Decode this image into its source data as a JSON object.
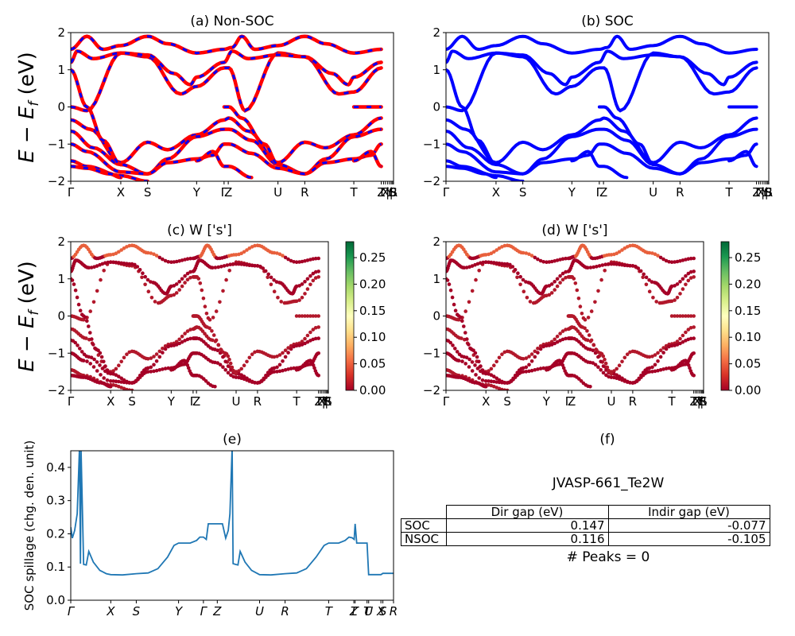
{
  "figure": {
    "ylabel_band": "E − E_f (eV)",
    "panels": {
      "a": {
        "title": "(a) Non-SOC"
      },
      "b": {
        "title": "(b) SOC"
      },
      "c": {
        "title": "(c)  W ['s']"
      },
      "d": {
        "title": "(d) W ['s']"
      },
      "e": {
        "title": "(e)"
      },
      "f": {
        "title": "(f)"
      }
    }
  },
  "chart_data": [
    {
      "id": "a",
      "type": "line",
      "title": "(a) Non-SOC",
      "ylabel": "E − E_f (eV)",
      "ylim": [
        -2,
        2
      ],
      "yticks": [
        "2",
        "1",
        "0",
        "−1",
        "−2"
      ],
      "ytick_values": [
        2,
        1,
        0,
        -1,
        -2
      ],
      "xtick_labels": [
        "Γ",
        "X",
        "S",
        "Y",
        "Γ",
        "Z",
        "U",
        "R",
        "T",
        "Z",
        "Γ",
        "X",
        "|",
        "Y",
        "|",
        "S",
        "R",
        "S"
      ],
      "xtick_positions": [
        0,
        0.155,
        0.238,
        0.39,
        0.475,
        0.488,
        0.642,
        0.725,
        0.877,
        0.962,
        0.969,
        0.975,
        0.982,
        0.988,
        0.993,
        0.997,
        1.0,
        1.0
      ],
      "series": [
        {
          "name": "Non-SOC bands",
          "color": "#ff0000",
          "style": "solid"
        },
        {
          "name": "SOC bands overlay",
          "color": "#0000ff",
          "style": "dashed"
        }
      ],
      "bands": [
        [
          [
            0,
            0
          ],
          [
            0.05,
            -0.1
          ],
          [
            0.155,
            1.45
          ],
          [
            0.238,
            1.35
          ],
          [
            0.34,
            0.35
          ],
          [
            0.39,
            0.55
          ],
          [
            0.475,
            1.05
          ],
          [
            0.49,
            1.05
          ],
          [
            0.54,
            -0.1
          ],
          [
            0.642,
            1.45
          ],
          [
            0.725,
            1.35
          ],
          [
            0.83,
            0.35
          ],
          [
            0.877,
            0.4
          ],
          [
            0.962,
            1.05
          ]
        ],
        [
          [
            0,
            1.2
          ],
          [
            0.02,
            1.5
          ],
          [
            0.07,
            1.3
          ],
          [
            0.155,
            1.45
          ],
          [
            0.238,
            1.4
          ],
          [
            0.32,
            0.9
          ],
          [
            0.37,
            0.6
          ],
          [
            0.39,
            0.8
          ],
          [
            0.475,
            1.2
          ],
          [
            0.5,
            1.5
          ],
          [
            0.55,
            1.3
          ],
          [
            0.642,
            1.4
          ],
          [
            0.725,
            1.35
          ],
          [
            0.81,
            0.9
          ],
          [
            0.86,
            0.6
          ],
          [
            0.877,
            0.8
          ],
          [
            0.962,
            1.2
          ]
        ],
        [
          [
            0,
            1.55
          ],
          [
            0.05,
            1.9
          ],
          [
            0.1,
            1.55
          ],
          [
            0.155,
            1.65
          ],
          [
            0.238,
            1.9
          ],
          [
            0.3,
            1.7
          ],
          [
            0.39,
            1.45
          ],
          [
            0.475,
            1.55
          ],
          [
            0.5,
            1.6
          ],
          [
            0.53,
            1.9
          ],
          [
            0.57,
            1.55
          ],
          [
            0.642,
            1.65
          ],
          [
            0.725,
            1.9
          ],
          [
            0.79,
            1.7
          ],
          [
            0.877,
            1.45
          ],
          [
            0.962,
            1.55
          ]
        ],
        [
          [
            0,
            -0.35
          ],
          [
            0.06,
            -0.6
          ],
          [
            0.155,
            -1.5
          ],
          [
            0.238,
            -0.95
          ],
          [
            0.3,
            -1.15
          ],
          [
            0.39,
            -0.75
          ],
          [
            0.475,
            -0.35
          ],
          [
            0.49,
            -0.3
          ],
          [
            0.55,
            -0.65
          ],
          [
            0.642,
            -1.5
          ],
          [
            0.725,
            -0.95
          ],
          [
            0.79,
            -1.1
          ],
          [
            0.877,
            -0.75
          ],
          [
            0.962,
            -0.3
          ]
        ],
        [
          [
            0,
            -0.65
          ],
          [
            0.07,
            -1.1
          ],
          [
            0.155,
            -1.55
          ],
          [
            0.238,
            -1.8
          ],
          [
            0.3,
            -1.4
          ],
          [
            0.39,
            -0.8
          ],
          [
            0.475,
            -0.6
          ],
          [
            0.49,
            -0.6
          ],
          [
            0.56,
            -0.9
          ],
          [
            0.642,
            -1.55
          ],
          [
            0.725,
            -1.8
          ],
          [
            0.79,
            -1.4
          ],
          [
            0.877,
            -0.8
          ],
          [
            0.962,
            -0.6
          ]
        ],
        [
          [
            0,
            -1.0
          ],
          [
            0.05,
            -1.2
          ],
          [
            0.155,
            -1.75
          ],
          [
            0.238,
            -1.8
          ],
          [
            0.3,
            -1.5
          ],
          [
            0.39,
            -1.4
          ],
          [
            0.44,
            -1.3
          ],
          [
            0.475,
            -1.0
          ],
          [
            0.49,
            -1.0
          ],
          [
            0.56,
            -1.25
          ],
          [
            0.642,
            -1.65
          ],
          [
            0.725,
            -1.8
          ],
          [
            0.79,
            -1.5
          ],
          [
            0.877,
            -1.4
          ],
          [
            0.93,
            -1.3
          ],
          [
            0.962,
            -1.0
          ]
        ],
        [
          [
            0,
            -1.45
          ],
          [
            0.05,
            -1.6
          ],
          [
            0.155,
            -1.85
          ],
          [
            0.238,
            -2.0
          ]
        ],
        [
          [
            0,
            -1.6
          ],
          [
            0.05,
            -1.65
          ],
          [
            0.12,
            -1.8
          ],
          [
            0.155,
            -1.9
          ]
        ],
        [
          [
            0,
            1.0
          ],
          [
            0.05,
            0.0
          ],
          [
            0.1,
            -0.9
          ],
          [
            0.155,
            -1.55
          ]
        ],
        [
          [
            0.475,
            0.0
          ],
          [
            0.49,
            0.0
          ],
          [
            0.53,
            -0.3
          ],
          [
            0.6,
            -1.0
          ],
          [
            0.642,
            -1.55
          ]
        ],
        [
          [
            0.39,
            -1.45
          ],
          [
            0.44,
            -1.2
          ],
          [
            0.475,
            -1.6
          ],
          [
            0.49,
            -1.6
          ],
          [
            0.56,
            -1.9
          ]
        ],
        [
          [
            0.877,
            -1.45
          ],
          [
            0.93,
            -1.2
          ],
          [
            0.962,
            -1.6
          ]
        ],
        [
          [
            0.877,
            0.0
          ],
          [
            0.962,
            0.0
          ]
        ]
      ]
    },
    {
      "id": "b",
      "type": "line",
      "title": "(b) SOC",
      "ylim": [
        -2,
        2
      ],
      "yticks": [
        "2",
        "1",
        "0",
        "−1",
        "−2"
      ],
      "ytick_values": [
        2,
        1,
        0,
        -1,
        -2
      ],
      "xtick_labels": [
        "Γ",
        "X",
        "S",
        "Y",
        "Γ",
        "Z",
        "U",
        "R",
        "T",
        "Z",
        "Γ",
        "X",
        "|",
        "Y",
        "|",
        "S",
        "R",
        "S"
      ],
      "series": [
        {
          "name": "SOC bands",
          "color": "#0000ff",
          "style": "solid"
        }
      ]
    },
    {
      "id": "c",
      "type": "scatter",
      "title": "(c)  W ['s']",
      "ylabel": "E − E_f (eV)",
      "ylim": [
        -2,
        2
      ],
      "yticks": [
        "2",
        "1",
        "0",
        "−1",
        "−2"
      ],
      "ytick_values": [
        2,
        1,
        0,
        -1,
        -2
      ],
      "xtick_labels": [
        "Γ",
        "X",
        "S",
        "Y",
        "Γ",
        "Z",
        "U",
        "R",
        "T",
        "Z",
        "Γ",
        "X",
        "|",
        "Y",
        "|",
        "R",
        "S"
      ],
      "colorbar": {
        "cmap": "RdYlGn",
        "range": [
          0.0,
          0.28
        ],
        "ticks": [
          "0.00",
          "0.05",
          "0.10",
          "0.15",
          "0.20",
          "0.25"
        ],
        "tick_values": [
          0,
          0.05,
          0.1,
          0.15,
          0.2,
          0.25
        ]
      }
    },
    {
      "id": "d",
      "type": "scatter",
      "title": "(d) W ['s']",
      "ylim": [
        -2,
        2
      ],
      "yticks": [
        "2",
        "1",
        "0",
        "−1",
        "−2"
      ],
      "ytick_values": [
        2,
        1,
        0,
        -1,
        -2
      ],
      "xtick_labels": [
        "Γ",
        "X",
        "S",
        "Y",
        "Γ",
        "Z",
        "U",
        "R",
        "T",
        "Z",
        "Γ",
        "X",
        "|",
        "Y",
        "|",
        "R",
        "S"
      ],
      "colorbar": {
        "cmap": "RdYlGn",
        "range": [
          0.0,
          0.28
        ],
        "ticks": [
          "0.00",
          "0.05",
          "0.10",
          "0.15",
          "0.20",
          "0.25"
        ],
        "tick_values": [
          0,
          0.05,
          0.1,
          0.15,
          0.2,
          0.25
        ]
      }
    },
    {
      "id": "e",
      "type": "line",
      "title": "(e)",
      "ylabel": "SOC spillage (chg. den. unit)",
      "xlabel": "",
      "ylim": [
        0.0,
        0.45
      ],
      "yticks": [
        "0.0",
        "0.1",
        "0.2",
        "0.3",
        "0.4"
      ],
      "ytick_values": [
        0.0,
        0.1,
        0.2,
        0.3,
        0.4
      ],
      "xtick_labels": [
        "Γ",
        "X",
        "S",
        "Y",
        "Γ",
        "Z",
        "U",
        "R",
        "T",
        "Z",
        "Γ",
        "T",
        "U",
        "X",
        "S",
        "R"
      ],
      "xtick_positions": [
        0,
        0.124,
        0.203,
        0.334,
        0.411,
        0.454,
        0.585,
        0.664,
        0.799,
        0.877,
        0.881,
        0.918,
        0.923,
        0.961,
        0.967,
        1.0
      ],
      "series": [
        {
          "name": "SOC spillage",
          "color": "#1f77b4",
          "points": [
            [
              0,
              0.22
            ],
            [
              0.005,
              0.187
            ],
            [
              0.012,
              0.21
            ],
            [
              0.02,
              0.26
            ],
            [
              0.027,
              0.46
            ],
            [
              0.032,
              0.45
            ],
            [
              0.03,
              0.11
            ],
            [
              0.04,
              0.108
            ],
            [
              0.048,
              0.106
            ],
            [
              0.056,
              0.147
            ],
            [
              0.07,
              0.115
            ],
            [
              0.09,
              0.09
            ],
            [
              0.11,
              0.08
            ],
            [
              0.124,
              0.077
            ],
            [
              0.16,
              0.076
            ],
            [
              0.203,
              0.08
            ],
            [
              0.24,
              0.082
            ],
            [
              0.27,
              0.095
            ],
            [
              0.3,
              0.13
            ],
            [
              0.32,
              0.165
            ],
            [
              0.334,
              0.172
            ],
            [
              0.37,
              0.172
            ],
            [
              0.39,
              0.18
            ],
            [
              0.4,
              0.19
            ],
            [
              0.411,
              0.19
            ],
            [
              0.42,
              0.183
            ],
            [
              0.426,
              0.23
            ],
            [
              0.47,
              0.23
            ],
            [
              0.48,
              0.187
            ],
            [
              0.488,
              0.21
            ],
            [
              0.493,
              0.26
            ],
            [
              0.5,
              0.46
            ],
            [
              0.503,
              0.11
            ],
            [
              0.51,
              0.108
            ],
            [
              0.518,
              0.106
            ],
            [
              0.525,
              0.147
            ],
            [
              0.54,
              0.115
            ],
            [
              0.56,
              0.09
            ],
            [
              0.585,
              0.077
            ],
            [
              0.62,
              0.076
            ],
            [
              0.664,
              0.08
            ],
            [
              0.7,
              0.082
            ],
            [
              0.73,
              0.095
            ],
            [
              0.76,
              0.13
            ],
            [
              0.785,
              0.165
            ],
            [
              0.799,
              0.172
            ],
            [
              0.83,
              0.172
            ],
            [
              0.85,
              0.18
            ],
            [
              0.862,
              0.19
            ],
            [
              0.872,
              0.188
            ],
            [
              0.878,
              0.183
            ],
            [
              0.881,
              0.23
            ],
            [
              0.886,
              0.172
            ],
            [
              0.9,
              0.172
            ],
            [
              0.918,
              0.172
            ],
            [
              0.923,
              0.077
            ],
            [
              0.961,
              0.077
            ],
            [
              0.967,
              0.081
            ],
            [
              1.0,
              0.081
            ]
          ]
        }
      ]
    },
    {
      "id": "f",
      "type": "table",
      "title": "(f)",
      "subtitle": "JVASP-661_Te2W",
      "columns": [
        "",
        "Dir gap (eV)",
        "Indir gap (eV)"
      ],
      "rows": [
        [
          "SOC",
          "0.147",
          "-0.077"
        ],
        [
          "NSOC",
          "0.116",
          "-0.105"
        ]
      ],
      "footer": "# Peaks = 0"
    }
  ]
}
